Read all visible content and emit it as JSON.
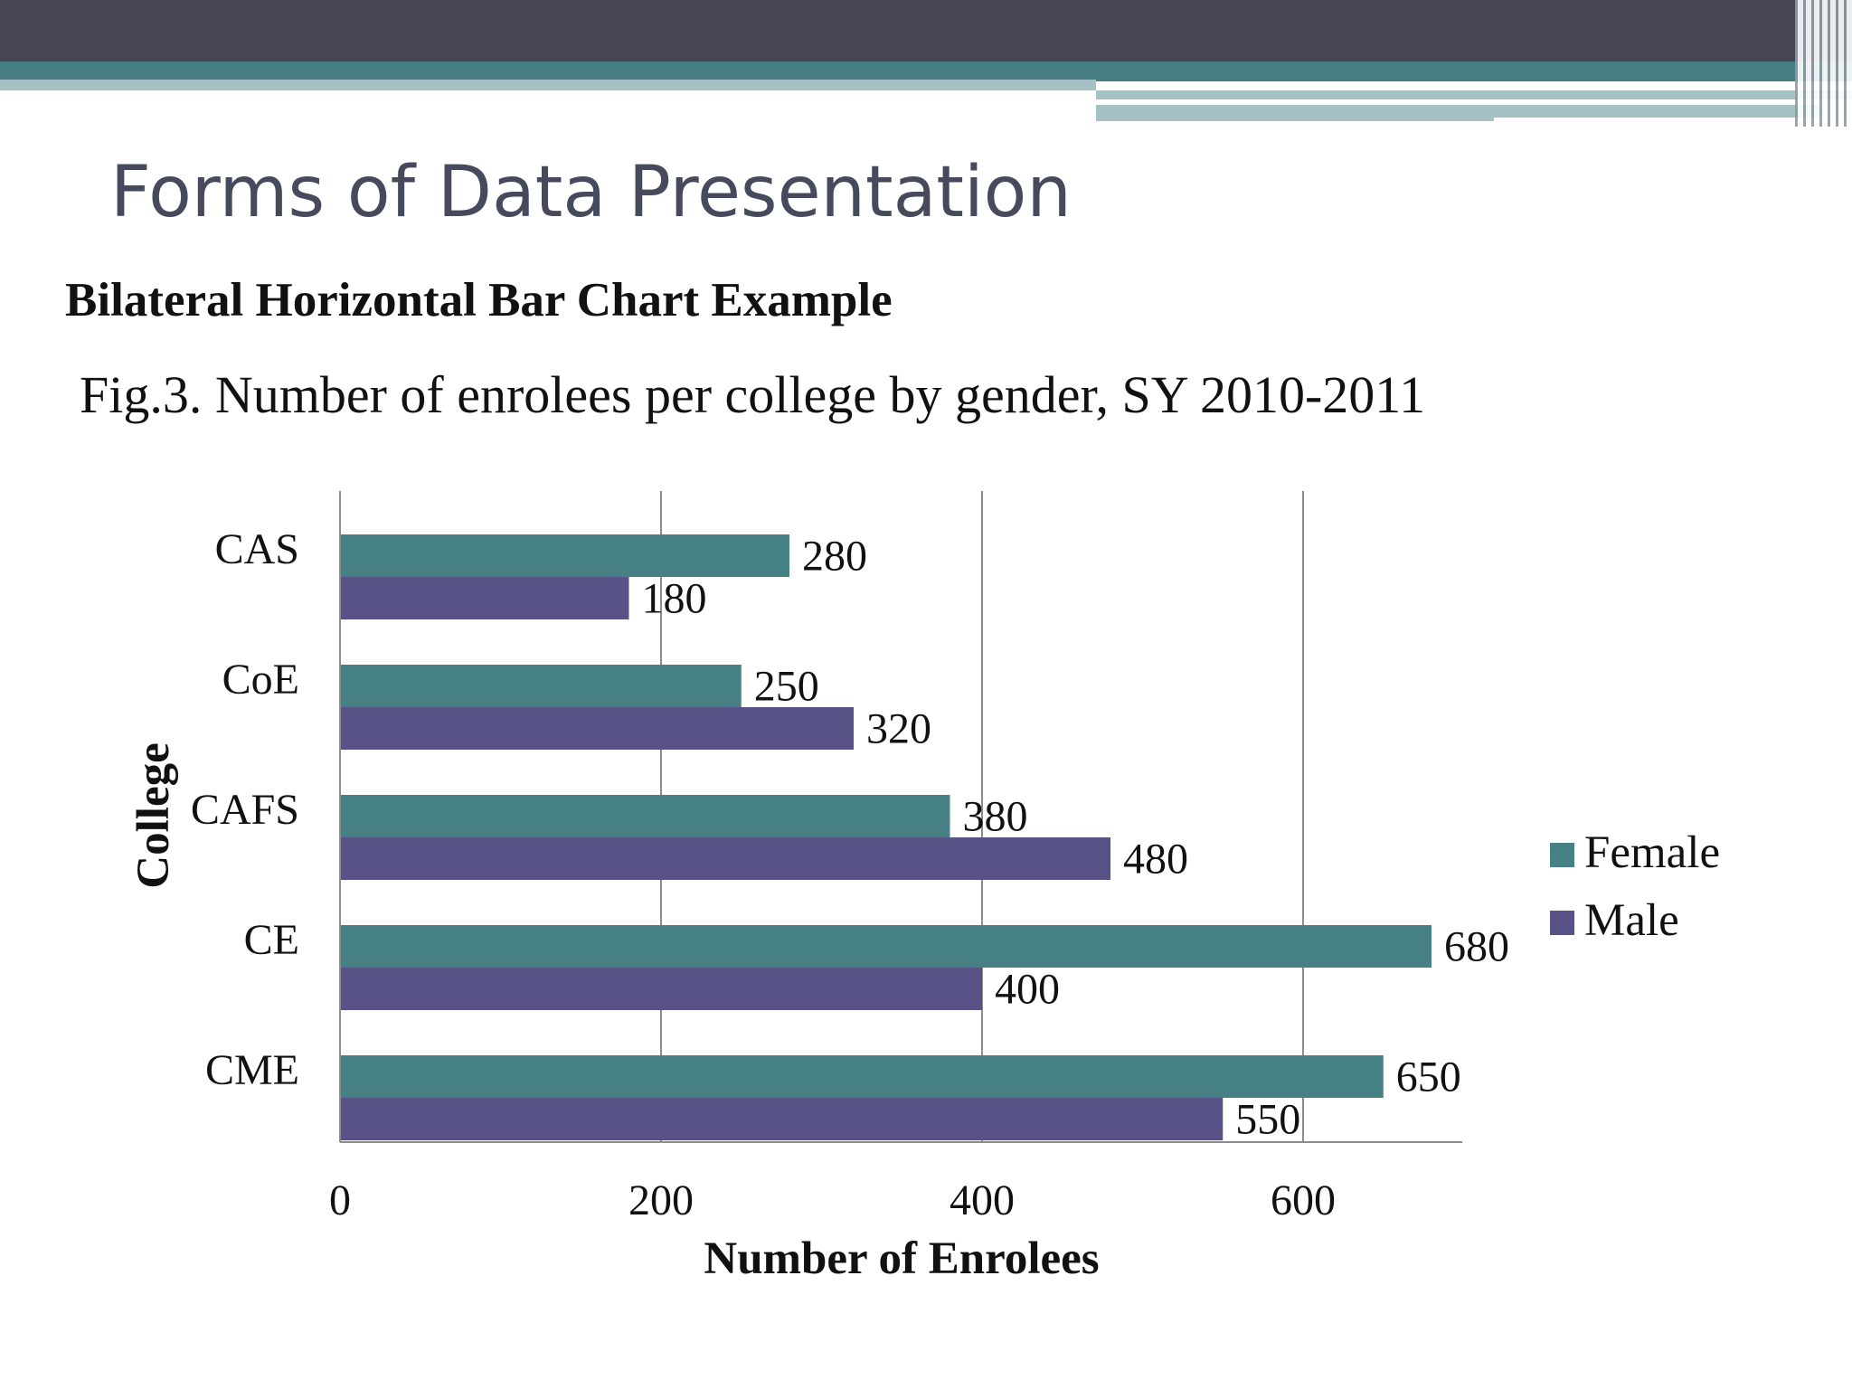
{
  "slide": {
    "title": "Forms of Data Presentation",
    "subtitle": "Bilateral Horizontal Bar Chart Example",
    "caption": "Fig.3. Number of enrolees per college by gender, SY 2010-2011"
  },
  "colors": {
    "female": "#468185",
    "male": "#575386",
    "banner_dark": "#454556",
    "banner_teal": "#477e83",
    "banner_light": "#a6c1c3",
    "title_text": "#464a5c"
  },
  "chart_data": {
    "type": "bar",
    "orientation": "horizontal",
    "title": "",
    "xlabel": "Number of Enrolees",
    "ylabel": "College",
    "categories": [
      "CAS",
      "CoE",
      "CAFS",
      "CE",
      "CME"
    ],
    "series": [
      {
        "name": "Female",
        "values": [
          280,
          250,
          380,
          680,
          650
        ]
      },
      {
        "name": "Male",
        "values": [
          180,
          320,
          480,
          400,
          550
        ]
      }
    ],
    "xlim": [
      0,
      700
    ],
    "x_ticks": [
      "0",
      "200",
      "400",
      "600"
    ],
    "grid": "vertical",
    "legend": "right",
    "data_labels": true
  }
}
